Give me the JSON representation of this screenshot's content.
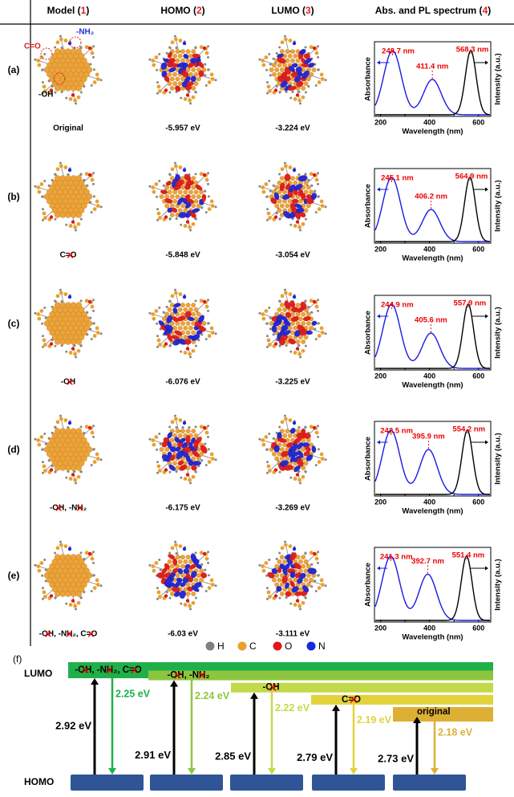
{
  "header": {
    "columns": [
      [
        "Model (",
        "1",
        ")"
      ],
      [
        "HOMO (",
        "2",
        ")"
      ],
      [
        "LUMO (",
        "3",
        ")"
      ],
      [
        "Abs. and PL spectrum (",
        "4",
        ")"
      ]
    ]
  },
  "model_annotations": [
    {
      "text": "-NH₂",
      "color": "#2030d0"
    },
    {
      "text": "C=O",
      "color": "#e02020"
    },
    {
      "text": "-OH",
      "color": "#000000"
    }
  ],
  "spectrum": {
    "xlim": [
      175,
      650
    ],
    "xticks": [
      200,
      300,
      400,
      500,
      600
    ],
    "xlabel": "Wavelength (nm)",
    "ylabel_left": "Absorbance",
    "ylabel_right": "Intensity (a.u.)",
    "abs_color": "#1a1ae6",
    "pl_color": "#000000"
  },
  "rows": [
    {
      "label": "(a)",
      "caption": [
        {
          "text": "Original"
        }
      ],
      "homo": "-5.957 eV",
      "lumo": "-3.224 eV",
      "abs_peaks": [
        {
          "value": 248.7,
          "label": "248.7 nm"
        },
        {
          "value": 411.4,
          "label": "411.4 nm"
        }
      ],
      "abs_heights": [
        1,
        0.55
      ],
      "pl_peak": {
        "value": 568.3,
        "label": "568.3 nm"
      }
    },
    {
      "label": "(b)",
      "caption": [
        {
          "text": "C=O",
          "removed": true
        }
      ],
      "homo": "-5.848 eV",
      "lumo": "-3.054 eV",
      "abs_peaks": [
        {
          "value": 245.1,
          "label": "245.1 nm"
        },
        {
          "value": 406.2,
          "label": "406.2 nm"
        }
      ],
      "abs_heights": [
        1,
        0.5
      ],
      "pl_peak": {
        "value": 564.9,
        "label": "564.9 nm"
      }
    },
    {
      "label": "(c)",
      "caption": [
        {
          "text": "-OH",
          "removed": true
        }
      ],
      "homo": "-6.076 eV",
      "lumo": "-3.225 eV",
      "abs_peaks": [
        {
          "value": 244.9,
          "label": "244.9 nm"
        },
        {
          "value": 405.6,
          "label": "405.6 nm"
        }
      ],
      "abs_heights": [
        1,
        0.55
      ],
      "pl_peak": {
        "value": 557.9,
        "label": "557.9 nm"
      }
    },
    {
      "label": "(d)",
      "caption": [
        {
          "text": "-OH",
          "removed": true
        },
        {
          "text": ", "
        },
        {
          "text": "-NH₂",
          "removed": true
        }
      ],
      "homo": "-6.175 eV",
      "lumo": "-3.269 eV",
      "abs_peaks": [
        {
          "value": 242.5,
          "label": "242.5 nm"
        },
        {
          "value": 395.9,
          "label": "395.9 nm"
        }
      ],
      "abs_heights": [
        1,
        0.7
      ],
      "pl_peak": {
        "value": 554.2,
        "label": "554.2 nm"
      }
    },
    {
      "label": "(e)",
      "caption": [
        {
          "text": "-OH",
          "removed": true
        },
        {
          "text": ", "
        },
        {
          "text": "-NH₂",
          "removed": true
        },
        {
          "text": ", "
        },
        {
          "text": "C=O",
          "removed": true
        }
      ],
      "homo": "-6.03 eV",
      "lumo": "-3.111 eV",
      "abs_peaks": [
        {
          "value": 241.3,
          "label": "241.3 nm"
        },
        {
          "value": 392.7,
          "label": "392.7 nm"
        }
      ],
      "abs_heights": [
        1,
        0.72
      ],
      "pl_peak": {
        "value": 551.4,
        "label": "551.4 nm"
      }
    }
  ],
  "legend": [
    {
      "label": "H",
      "color": "#808080"
    },
    {
      "label": "C",
      "color": "#e8a030"
    },
    {
      "label": "O",
      "color": "#e01818"
    },
    {
      "label": "N",
      "color": "#1828e0"
    }
  ],
  "panel_f": {
    "label": "(f)",
    "lumo": "LUMO",
    "homo": "HOMO",
    "levels": [
      {
        "name": [
          {
            "text": "-OH",
            "removed": true
          },
          {
            "text": ", "
          },
          {
            "text": "-NH₂",
            "removed": true
          },
          {
            "text": ", "
          },
          {
            "text": "C=O",
            "removed": true
          }
        ],
        "gap": {
          "value": 2.92,
          "label": "2.92 eV"
        },
        "optical": {
          "value": 2.25,
          "label": "2.25 eV"
        },
        "color": "#1fb04a"
      },
      {
        "name": [
          {
            "text": "-OH",
            "removed": true
          },
          {
            "text": ", "
          },
          {
            "text": "-NH₂",
            "removed": true
          }
        ],
        "gap": {
          "value": 2.91,
          "label": "2.91 eV"
        },
        "optical": {
          "value": 2.24,
          "label": "2.24 eV"
        },
        "color": "#8cc63f"
      },
      {
        "name": [
          {
            "text": "-OH",
            "removed": true
          }
        ],
        "gap": {
          "value": 2.85,
          "label": "2.85 eV"
        },
        "optical": {
          "value": 2.22,
          "label": "2.22 eV"
        },
        "color": "#c2d94a"
      },
      {
        "name": [
          {
            "text": "C=O",
            "removed": true
          }
        ],
        "gap": {
          "value": 2.79,
          "label": "2.79 eV"
        },
        "optical": {
          "value": 2.19,
          "label": "2.19 eV"
        },
        "color": "#e2d23c"
      },
      {
        "name": [
          {
            "text": "original"
          }
        ],
        "gap": {
          "value": 2.73,
          "label": "2.73 eV"
        },
        "optical": {
          "value": 2.18,
          "label": "2.18 eV"
        },
        "color": "#ddb035"
      }
    ]
  }
}
